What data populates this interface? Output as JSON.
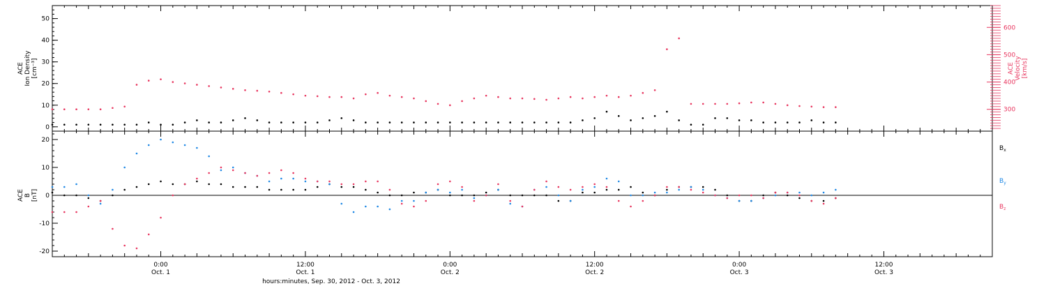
{
  "chart_data": [
    {
      "type": "scatter",
      "panel": "top",
      "ylabel_left": [
        "ACE",
        "Ion Density",
        "[cm⁻³]"
      ],
      "ylabel_right": [
        "ACE",
        "Velocity",
        "[km/s]"
      ],
      "ylim_left": [
        -2,
        56
      ],
      "ylim_right": [
        220,
        680
      ],
      "yticks_left": [
        "0",
        "10",
        "20",
        "30",
        "40",
        "50"
      ],
      "yticks_right": [
        "300",
        "400",
        "500",
        "600"
      ],
      "right_axis_color": "#e8365f",
      "series": [
        {
          "color": "#000000",
          "x": [
            0,
            1,
            2,
            3,
            4,
            5,
            6,
            7,
            8,
            9,
            10,
            11,
            12,
            13,
            14,
            15,
            16,
            17,
            18,
            19,
            20,
            21,
            22,
            23,
            24,
            25,
            26,
            27,
            28,
            29,
            30,
            31,
            32,
            33,
            34,
            35,
            36,
            37,
            38,
            39,
            40,
            41,
            42,
            43,
            44,
            45,
            46,
            47,
            48,
            49,
            50,
            51,
            52,
            53,
            54,
            55,
            56,
            57,
            58,
            59,
            60,
            61,
            62,
            63,
            64,
            65
          ],
          "y": [
            1,
            1,
            1,
            1,
            1,
            1,
            1,
            1,
            2,
            1,
            1,
            2,
            3,
            2,
            2,
            3,
            4,
            3,
            2,
            2,
            2,
            2,
            2,
            3,
            4,
            3,
            2,
            2,
            2,
            2,
            2,
            2,
            2,
            2,
            2,
            2,
            2,
            2,
            2,
            2,
            2,
            2,
            2,
            2,
            3,
            4,
            7,
            5,
            3,
            4,
            5,
            7,
            3,
            1,
            1,
            4,
            4,
            3,
            3,
            2,
            2,
            2,
            2,
            3,
            2,
            2
          ]
        },
        {
          "color": "#e8365f",
          "x": [
            0,
            1,
            2,
            3,
            4,
            5,
            6,
            7,
            8,
            9,
            10,
            11,
            12,
            13,
            14,
            15,
            16,
            17,
            18,
            19,
            20,
            21,
            22,
            23,
            24,
            25,
            26,
            27,
            28,
            29,
            30,
            31,
            32,
            33,
            34,
            35,
            36,
            37,
            38,
            39,
            40,
            41,
            42,
            43,
            44,
            45,
            46,
            47,
            48,
            49,
            50,
            51,
            52,
            53,
            54,
            55,
            56,
            57,
            58,
            59,
            60,
            61,
            62,
            63,
            64,
            65
          ],
          "y": [
            300,
            300,
            300,
            300,
            300,
            305,
            310,
            390,
            405,
            410,
            400,
            395,
            390,
            385,
            380,
            375,
            370,
            368,
            365,
            360,
            355,
            350,
            348,
            345,
            345,
            340,
            355,
            360,
            350,
            345,
            340,
            330,
            320,
            315,
            330,
            340,
            350,
            345,
            340,
            340,
            338,
            335,
            340,
            345,
            340,
            345,
            350,
            345,
            350,
            360,
            370,
            520,
            560,
            320,
            320,
            320,
            320,
            322,
            325,
            325,
            320,
            315,
            312,
            310,
            308,
            308
          ]
        }
      ]
    },
    {
      "type": "scatter",
      "panel": "bottom",
      "ylabel_left": [
        "ACE",
        "B",
        "[nT]"
      ],
      "ylim": [
        -22,
        23
      ],
      "yticks": [
        "-20",
        "-10",
        "0",
        "10",
        "20"
      ],
      "series": [
        {
          "name": "Bx",
          "color": "#000000",
          "x": [
            0,
            1,
            2,
            3,
            4,
            5,
            6,
            7,
            8,
            9,
            10,
            11,
            12,
            13,
            14,
            15,
            16,
            17,
            18,
            19,
            20,
            21,
            22,
            23,
            24,
            25,
            26,
            27,
            28,
            29,
            30,
            31,
            32,
            33,
            34,
            35,
            36,
            37,
            38,
            39,
            40,
            41,
            42,
            43,
            44,
            45,
            46,
            47,
            48,
            49,
            50,
            51,
            52,
            53,
            54,
            55,
            56,
            57,
            58,
            59,
            60,
            61,
            62,
            63,
            64,
            65
          ],
          "y": [
            1,
            0,
            0,
            -1,
            -2,
            0,
            2,
            3,
            4,
            5,
            4,
            4,
            5,
            4,
            4,
            3,
            3,
            3,
            2,
            2,
            2,
            2,
            3,
            4,
            3,
            3,
            2,
            1,
            0,
            0,
            1,
            1,
            2,
            0,
            0,
            0,
            1,
            2,
            0,
            0,
            0,
            0,
            -2,
            -2,
            1,
            1,
            2,
            2,
            3,
            1,
            0,
            2,
            3,
            3,
            3,
            2,
            0,
            -2,
            -2,
            0,
            1,
            0,
            -1,
            -2,
            -2,
            -1
          ]
        },
        {
          "name": "By",
          "color": "#1e88e5",
          "x": [
            0,
            1,
            2,
            3,
            4,
            5,
            6,
            7,
            8,
            9,
            10,
            11,
            12,
            13,
            14,
            15,
            16,
            17,
            18,
            19,
            20,
            21,
            22,
            23,
            24,
            25,
            26,
            27,
            28,
            29,
            30,
            31,
            32,
            33,
            34,
            35,
            36,
            37,
            38,
            39,
            40,
            41,
            42,
            43,
            44,
            45,
            46,
            47,
            48,
            49,
            50,
            51,
            52,
            53,
            54,
            55,
            56,
            57,
            58,
            59,
            60,
            61,
            62,
            63,
            64,
            65
          ],
          "y": [
            3,
            3,
            4,
            0,
            -3,
            2,
            10,
            15,
            18,
            20,
            19,
            18,
            17,
            14,
            9,
            10,
            8,
            7,
            5,
            6,
            6,
            5,
            5,
            4,
            -3,
            -6,
            -4,
            -4,
            -5,
            -2,
            -2,
            1,
            2,
            1,
            2,
            -1,
            0,
            2,
            -3,
            -4,
            2,
            3,
            0,
            -2,
            2,
            3,
            6,
            5,
            0,
            0,
            1,
            1,
            2,
            3,
            2,
            0,
            -1,
            -2,
            -2,
            -1,
            0,
            1,
            1,
            0,
            1,
            2
          ]
        },
        {
          "name": "Bz",
          "color": "#e8365f",
          "x": [
            0,
            1,
            2,
            3,
            4,
            5,
            6,
            7,
            8,
            9,
            10,
            11,
            12,
            13,
            14,
            15,
            16,
            17,
            18,
            19,
            20,
            21,
            22,
            23,
            24,
            25,
            26,
            27,
            28,
            29,
            30,
            31,
            32,
            33,
            34,
            35,
            36,
            37,
            38,
            39,
            40,
            41,
            42,
            43,
            44,
            45,
            46,
            47,
            48,
            49,
            50,
            51,
            52,
            53,
            54,
            55,
            56,
            57,
            58,
            59,
            60,
            61,
            62,
            63,
            64,
            65
          ],
          "y": [
            -6,
            -6,
            -6,
            -4,
            -2,
            -12,
            -18,
            -19,
            -14,
            -8,
            0,
            4,
            6,
            8,
            10,
            9,
            8,
            7,
            8,
            9,
            8,
            6,
            5,
            5,
            4,
            4,
            5,
            5,
            2,
            -3,
            -4,
            -2,
            4,
            5,
            3,
            -2,
            0,
            4,
            -2,
            -4,
            2,
            5,
            3,
            2,
            3,
            4,
            3,
            -2,
            -4,
            -2,
            0,
            3,
            3,
            2,
            1,
            0,
            -1,
            0,
            0,
            -1,
            1,
            1,
            0,
            -2,
            -3,
            -1
          ]
        }
      ]
    }
  ],
  "legend": {
    "bx_main": "B",
    "bx_sub": "x",
    "by_main": "B",
    "by_sub": "y",
    "bz_main": "B",
    "bz_sub": "z"
  },
  "x_axis": {
    "ticks": [
      {
        "x": 9,
        "time": "0:00",
        "date": "Oct. 1"
      },
      {
        "x": 21,
        "time": "12:00",
        "date": "Oct. 1"
      },
      {
        "x": 33,
        "time": "0:00",
        "date": "Oct. 2"
      },
      {
        "x": 45,
        "time": "12:00",
        "date": "Oct. 2"
      },
      {
        "x": 57,
        "time": "0:00",
        "date": "Oct. 3"
      },
      {
        "x": 69,
        "time": "12:00",
        "date": "Oct. 3"
      }
    ],
    "xlim": [
      0,
      78
    ],
    "label": "hours:minutes, Sep. 30, 2012 - Oct. 3, 2012"
  }
}
